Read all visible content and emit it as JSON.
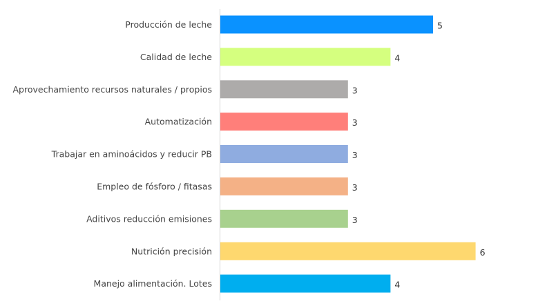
{
  "chart_data": {
    "type": "bar",
    "orientation": "horizontal",
    "categories": [
      "Producción de leche",
      "Calidad de leche",
      "Aprovechamiento recursos naturales / propios",
      "Automatización",
      "Trabajar en aminoácidos y reducir PB",
      "Empleo de fósforo / fitasas",
      "Aditivos reducción emisiones",
      "Nutrición precisión",
      "Manejo alimentación. Lotes"
    ],
    "values": [
      5,
      4,
      3,
      3,
      3,
      3,
      3,
      6,
      4
    ],
    "colors": [
      "#0A92FF",
      "#D5FF7F",
      "#ADABAA",
      "#FF7F7A",
      "#8FACE0",
      "#F4B186",
      "#A8D18E",
      "#FED86F",
      "#00AEEF"
    ],
    "xlim": [
      0,
      7
    ],
    "grid": false,
    "title": "",
    "xlabel": "",
    "ylabel": ""
  }
}
